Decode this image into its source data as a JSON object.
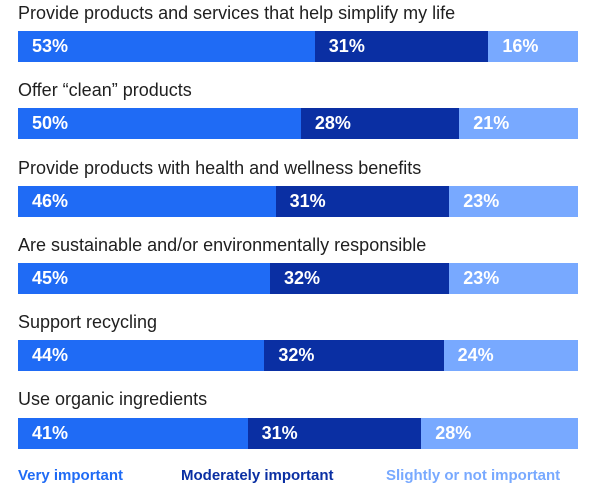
{
  "colors": {
    "very_important": "#1f6bf5",
    "moderately_important": "#0a2fa3",
    "slightly_or_not_important": "#78a9ff",
    "label_text": "#1f1f1f"
  },
  "legend": {
    "very_important": "Very important",
    "moderately_important": "Moderately important",
    "slightly_or_not_important": "Slightly or not important"
  },
  "chart_data": {
    "type": "bar",
    "orientation": "horizontal",
    "stacked": true,
    "categories": [
      "Provide products and services that help simplify my life",
      "Offer “clean” products",
      "Provide products with health and wellness benefits",
      "Are sustainable and/or environmentally responsible",
      "Support recycling",
      "Use organic ingredients"
    ],
    "series": [
      {
        "name": "Very important",
        "values": [
          53,
          50,
          46,
          45,
          44,
          41
        ]
      },
      {
        "name": "Moderately important",
        "values": [
          31,
          28,
          31,
          32,
          32,
          31
        ]
      },
      {
        "name": "Slightly or not important",
        "values": [
          16,
          21,
          23,
          23,
          24,
          28
        ]
      }
    ],
    "value_suffix": "%",
    "legend_position": "bottom"
  }
}
